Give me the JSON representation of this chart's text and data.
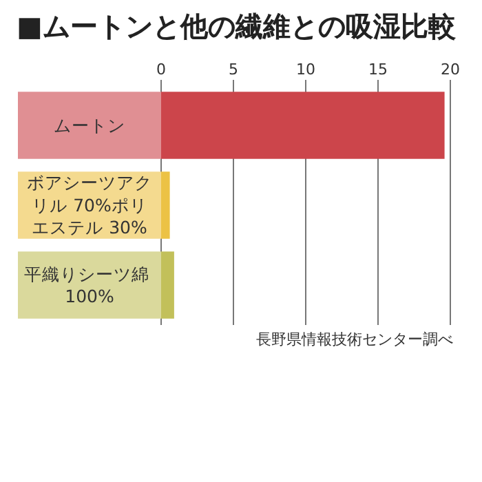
{
  "chart_data": {
    "type": "bar",
    "orientation": "horizontal",
    "title": "■ムートンと他の繊維との吸湿比較",
    "categories": [
      "ムートン",
      "ボアシーツアクリル 70%ポリエステル 30%",
      "平織りシーツ綿 100%"
    ],
    "values": [
      19.6,
      0.6,
      0.9
    ],
    "colors": [
      "#cc454b",
      "#ecc245",
      "#c2c05a"
    ],
    "xlim": [
      0,
      20
    ],
    "xticks": [
      0,
      5,
      10,
      15,
      20
    ],
    "grid": "x",
    "annotations": [
      "長野県情報技術センター調べ"
    ]
  }
}
